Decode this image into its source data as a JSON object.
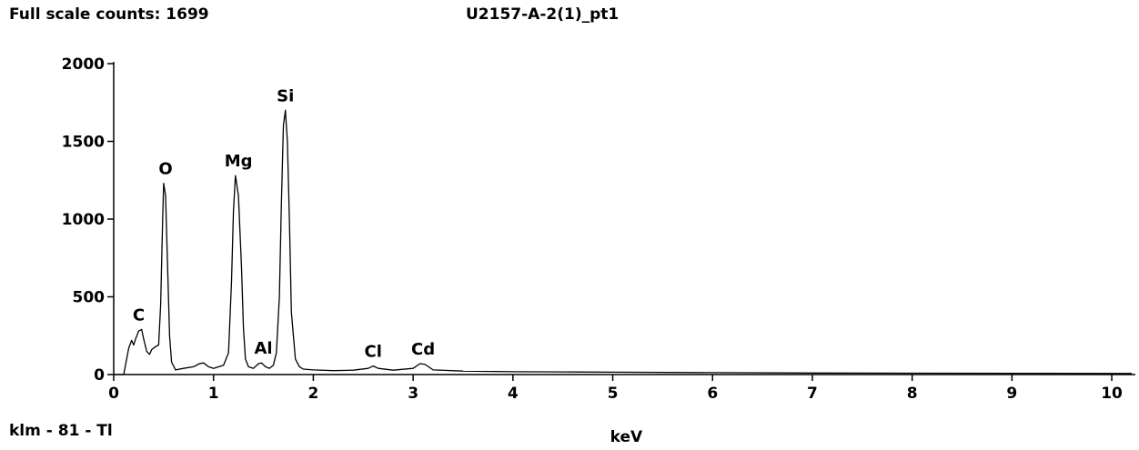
{
  "header": {
    "counts_label": "Full scale counts: 1699",
    "sample_name": "U2157-A-2(1)_pt1"
  },
  "footer": {
    "left_label": "klm - 81 - Tl"
  },
  "chart_data": {
    "type": "line",
    "title": "U2157-A-2(1)_pt1",
    "xlabel": "keV",
    "ylabel": "",
    "xlim": [
      0,
      10.2
    ],
    "ylim": [
      0,
      2000
    ],
    "x_ticks": [
      0,
      1,
      2,
      3,
      4,
      5,
      6,
      7,
      8,
      9,
      10
    ],
    "y_ticks": [
      0,
      500,
      1000,
      1500,
      2000
    ],
    "grid": false,
    "line_color": "#000000",
    "series": [
      {
        "x": [
          0.0,
          0.1,
          0.15,
          0.18,
          0.2,
          0.22,
          0.25,
          0.28,
          0.3,
          0.33,
          0.36,
          0.38,
          0.42,
          0.45,
          0.47,
          0.49,
          0.5,
          0.52,
          0.54,
          0.56,
          0.58,
          0.62,
          0.7,
          0.8,
          0.86,
          0.9,
          0.95,
          1.0,
          1.1,
          1.15,
          1.18,
          1.2,
          1.22,
          1.25,
          1.28,
          1.3,
          1.32,
          1.35,
          1.4,
          1.45,
          1.48,
          1.52,
          1.56,
          1.6,
          1.63,
          1.66,
          1.68,
          1.7,
          1.72,
          1.74,
          1.76,
          1.78,
          1.82,
          1.86,
          1.9,
          2.0,
          2.2,
          2.4,
          2.55,
          2.6,
          2.65,
          2.8,
          3.0,
          3.07,
          3.12,
          3.2,
          3.5,
          4.0,
          4.5,
          5.0,
          6.0,
          7.0,
          8.0,
          9.0,
          10.0,
          10.2
        ],
        "y": [
          0,
          0,
          170,
          220,
          190,
          230,
          280,
          290,
          230,
          150,
          130,
          160,
          180,
          190,
          450,
          1000,
          1230,
          1150,
          700,
          250,
          80,
          30,
          40,
          50,
          70,
          75,
          50,
          40,
          60,
          140,
          600,
          1050,
          1280,
          1150,
          700,
          300,
          100,
          50,
          40,
          70,
          75,
          50,
          40,
          60,
          140,
          500,
          1100,
          1600,
          1700,
          1500,
          1000,
          400,
          100,
          50,
          35,
          30,
          25,
          28,
          40,
          55,
          40,
          28,
          40,
          70,
          65,
          30,
          22,
          18,
          17,
          15,
          12,
          10,
          9,
          8,
          7,
          7
        ]
      }
    ],
    "annotations": [
      {
        "label": "C",
        "x": 0.25,
        "y": 290
      },
      {
        "label": "O",
        "x": 0.52,
        "y": 1230
      },
      {
        "label": "Mg",
        "x": 1.25,
        "y": 1280
      },
      {
        "label": "Al",
        "x": 1.5,
        "y": 75
      },
      {
        "label": "Si",
        "x": 1.72,
        "y": 1700
      },
      {
        "label": "Cl",
        "x": 2.6,
        "y": 55
      },
      {
        "label": "Cd",
        "x": 3.1,
        "y": 70
      }
    ]
  }
}
